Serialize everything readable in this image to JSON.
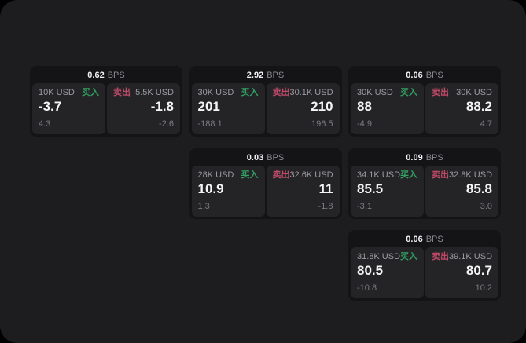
{
  "labels": {
    "bps_unit": "BPS",
    "buy": "买入",
    "sell": "卖出"
  },
  "colors": {
    "buy_green": "#32a062",
    "sell_red": "#bf4a68",
    "card_bg": "#141416",
    "panel_bg": "#242427",
    "screen_bg": "#1d1d1f"
  },
  "cards": [
    {
      "bps": "0.62",
      "col": 1,
      "row": 1,
      "buy": {
        "amount": "10K USD",
        "value": "-3.7",
        "sub": "4.3"
      },
      "sell": {
        "amount": "5.5K USD",
        "value": "-1.8",
        "sub": "-2.6"
      }
    },
    {
      "bps": "2.92",
      "col": 2,
      "row": 1,
      "buy": {
        "amount": "30K USD",
        "value": "201",
        "sub": "-188.1"
      },
      "sell": {
        "amount": "30.1K USD",
        "value": "210",
        "sub": "196.5"
      }
    },
    {
      "bps": "0.06",
      "col": 3,
      "row": 1,
      "buy": {
        "amount": "30K USD",
        "value": "88",
        "sub": "-4.9"
      },
      "sell": {
        "amount": "30K USD",
        "value": "88.2",
        "sub": "4.7"
      }
    },
    {
      "bps": "0.03",
      "col": 2,
      "row": 2,
      "buy": {
        "amount": "28K USD",
        "value": "10.9",
        "sub": "1.3"
      },
      "sell": {
        "amount": "32.6K USD",
        "value": "11",
        "sub": "-1.8"
      }
    },
    {
      "bps": "0.09",
      "col": 3,
      "row": 2,
      "buy": {
        "amount": "34.1K USD",
        "value": "85.5",
        "sub": "-3.1"
      },
      "sell": {
        "amount": "32.8K USD",
        "value": "85.8",
        "sub": "3.0"
      }
    },
    {
      "bps": "0.06",
      "col": 3,
      "row": 3,
      "buy": {
        "amount": "31.8K USD",
        "value": "80.5",
        "sub": "-10.8"
      },
      "sell": {
        "amount": "39.1K USD",
        "value": "80.7",
        "sub": "10.2"
      }
    }
  ]
}
